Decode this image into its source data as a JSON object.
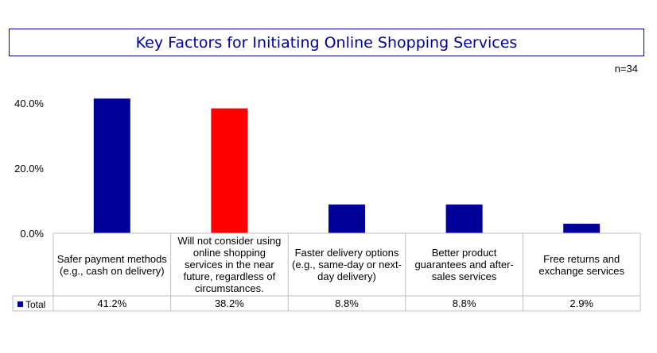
{
  "chart_data": {
    "type": "bar",
    "title": "Key Factors for Initiating Online Shopping Services",
    "note": "n=34",
    "categories": [
      "Safer payment methods (e.g., cash on delivery)",
      "Will not consider using online shopping services in the near future, regardless of circumstances.",
      "Faster delivery options (e.g., same-day or next-day delivery)",
      "Better product guarantees and after-sales services",
      "Free returns and exchange services"
    ],
    "series": [
      {
        "name": "Total",
        "values": [
          41.2,
          38.2,
          8.8,
          8.8,
          2.9
        ],
        "value_labels": [
          "41.2%",
          "38.2%",
          "8.8%",
          "8.8%",
          "2.9%"
        ],
        "color": "#000099"
      }
    ],
    "highlight": {
      "index": 1,
      "color": "#ff0000"
    },
    "ylim": [
      0,
      40
    ],
    "yticks": [
      "0.0%",
      "20.0%",
      "40.0%"
    ],
    "grid": false,
    "legend": "data-table"
  }
}
